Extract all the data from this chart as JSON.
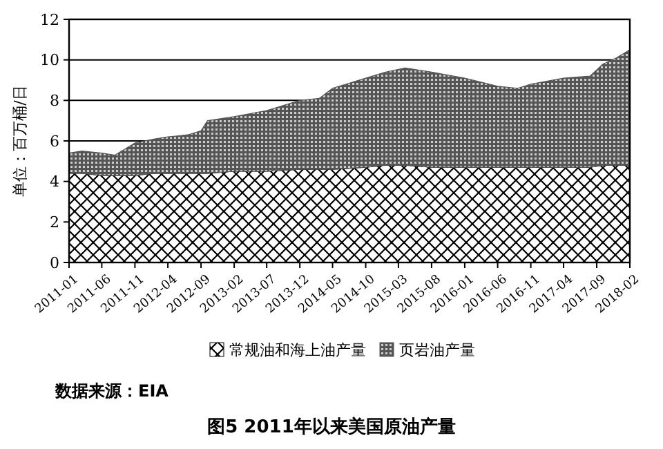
{
  "chart_data": {
    "type": "area",
    "stacked": true,
    "title": "图5  2011年以来美国原油产量",
    "ylabel": "单位：百万桶/日",
    "annotations": [
      "数据来源：EIA"
    ],
    "x": [
      "2011-01",
      "2011-03",
      "2011-06",
      "2011-08",
      "2011-11",
      "2012-02",
      "2012-04",
      "2012-07",
      "2012-09",
      "2012-10",
      "2013-02",
      "2013-07",
      "2013-12",
      "2014-03",
      "2014-05",
      "2014-10",
      "2015-01",
      "2015-04",
      "2015-08",
      "2016-01",
      "2016-06",
      "2016-09",
      "2016-11",
      "2017-04",
      "2017-08",
      "2017-10",
      "2017-12",
      "2018-02"
    ],
    "series": [
      {
        "name": "常规油和海上油产量",
        "color": "#000000",
        "values": [
          4.4,
          4.4,
          4.3,
          4.3,
          4.3,
          4.4,
          4.4,
          4.4,
          4.4,
          4.4,
          4.5,
          4.5,
          4.6,
          4.6,
          4.6,
          4.7,
          4.8,
          4.8,
          4.7,
          4.7,
          4.7,
          4.7,
          4.7,
          4.7,
          4.7,
          4.8,
          4.8,
          4.8
        ]
      },
      {
        "name": "页岩油产量",
        "color": "#555555",
        "values": [
          1.0,
          1.1,
          1.1,
          1.0,
          1.6,
          1.7,
          1.8,
          1.9,
          2.1,
          2.6,
          2.7,
          3.0,
          3.4,
          3.5,
          4.0,
          4.4,
          4.6,
          4.8,
          4.7,
          4.4,
          4.0,
          3.9,
          4.1,
          4.4,
          4.5,
          5.0,
          5.3,
          5.7
        ]
      }
    ],
    "xlim": [
      "2011-01",
      "2018-02"
    ],
    "xticks": [
      {
        "value": "2011-01",
        "label": "2011-01"
      },
      {
        "value": "2011-06",
        "label": "2011-06"
      },
      {
        "value": "2011-11",
        "label": "2011-11"
      },
      {
        "value": "2012-04",
        "label": "2012-04"
      },
      {
        "value": "2012-09",
        "label": "2012-09"
      },
      {
        "value": "2013-02",
        "label": "2013-02"
      },
      {
        "value": "2013-07",
        "label": "2013-07"
      },
      {
        "value": "2013-12",
        "label": "2013-12"
      },
      {
        "value": "2014-05",
        "label": "2014-05"
      },
      {
        "value": "2014-10",
        "label": "2014-10"
      },
      {
        "value": "2015-03",
        "label": "2015-03"
      },
      {
        "value": "2015-08",
        "label": "2015-08"
      },
      {
        "value": "2016-01",
        "label": "2016-01"
      },
      {
        "value": "2016-06",
        "label": "2016-06"
      },
      {
        "value": "2016-11",
        "label": "2016-11"
      },
      {
        "value": "2017-04",
        "label": "2017-04"
      },
      {
        "value": "2017-09",
        "label": "2017-09"
      },
      {
        "value": "2018-02",
        "label": "2018-02"
      }
    ],
    "ylim": [
      0,
      12
    ],
    "yticks": [
      0,
      2,
      4,
      6,
      8,
      10,
      12
    ],
    "grid": "y",
    "legend": "bottom"
  }
}
